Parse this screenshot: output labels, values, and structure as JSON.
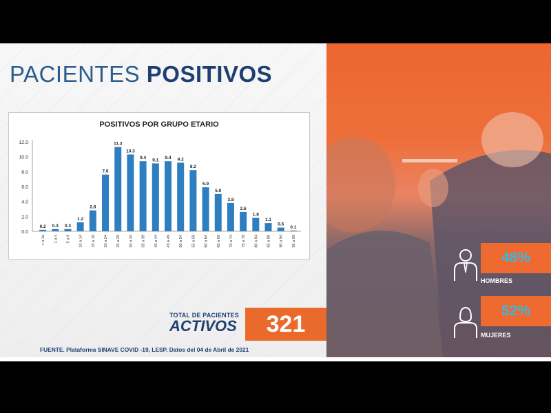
{
  "slide": {
    "title_light": "PACIENTES ",
    "title_bold": "POSITIVOS",
    "total_small": "TOTAL DE PACIENTES",
    "total_big": "ACTIVOS",
    "total_value": "321",
    "source": "FUENTE. Plataforma SINAVE COVID -19, LESP. Datos del 04 de Abril de 2021"
  },
  "gender": {
    "men_pct": "48%",
    "men_label": "HOMBRES",
    "women_pct": "52%",
    "women_label": "MUJERES"
  },
  "colors": {
    "bar": "#2e7fc1",
    "accent": "#ea6a2b",
    "title": "#1f3f72",
    "pct_text": "#38b8e0"
  },
  "icons": [
    "man-icon",
    "woman-icon"
  ],
  "chart_data": {
    "type": "bar",
    "title": "POSITIVOS POR GRUPO ETARIO",
    "xlabel": "",
    "ylabel": "",
    "categories": [
      "< a 1a",
      "1 a 4",
      "5 a 9",
      "10 a 14",
      "15 a 19",
      "20 a 24",
      "25 a 29",
      "30 a 34",
      "35 a 39",
      "40 a 44",
      "45 a 49",
      "50 a 54",
      "55 a 59",
      "60 a 64",
      "65 a 69",
      "70 a 74",
      "75 a 79",
      "80 a 84",
      "85 a 89",
      "90 a 94",
      "95 a 99"
    ],
    "values": [
      0.2,
      0.3,
      0.3,
      1.2,
      2.8,
      7.6,
      11.3,
      10.3,
      9.4,
      9.1,
      9.4,
      9.2,
      8.2,
      5.9,
      5.0,
      3.8,
      2.6,
      1.8,
      1.1,
      0.5,
      0.1
    ],
    "data_labels": [
      "0.2",
      "0.3",
      "0.3",
      "1.2",
      "2.8",
      "7.6",
      "11.3",
      "10.3",
      "9.4",
      "9.1",
      "9.4",
      "9.2",
      "8.2",
      "5.9",
      "5.0",
      "3.8",
      "2.6",
      "1.8",
      "1.1",
      "0.5",
      "0.1"
    ],
    "yticks": [
      "0.0",
      "2.0",
      "4.0",
      "6.0",
      "8.0",
      "10.0",
      "12.0"
    ],
    "ylim": [
      0,
      12
    ],
    "grid": false,
    "legend": "none"
  }
}
